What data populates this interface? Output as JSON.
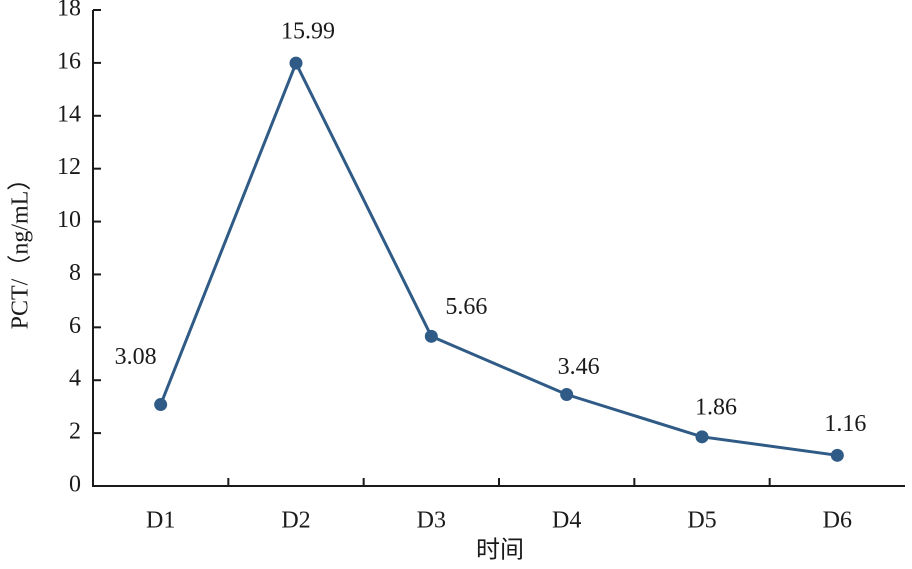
{
  "chart_data": {
    "type": "line",
    "x_label": "时间",
    "y_label": "PCT/（ng/mL）",
    "categories": [
      "D1",
      "D2",
      "D3",
      "D4",
      "D5",
      "D6"
    ],
    "series": [
      {
        "name": "PCT",
        "color": "#2f5b86",
        "values": [
          3.08,
          15.99,
          5.66,
          3.46,
          1.86,
          1.16
        ]
      }
    ],
    "ylim": [
      0,
      18
    ],
    "yticks": [
      0,
      2,
      4,
      6,
      8,
      10,
      12,
      14,
      16,
      18
    ],
    "grid": false
  }
}
